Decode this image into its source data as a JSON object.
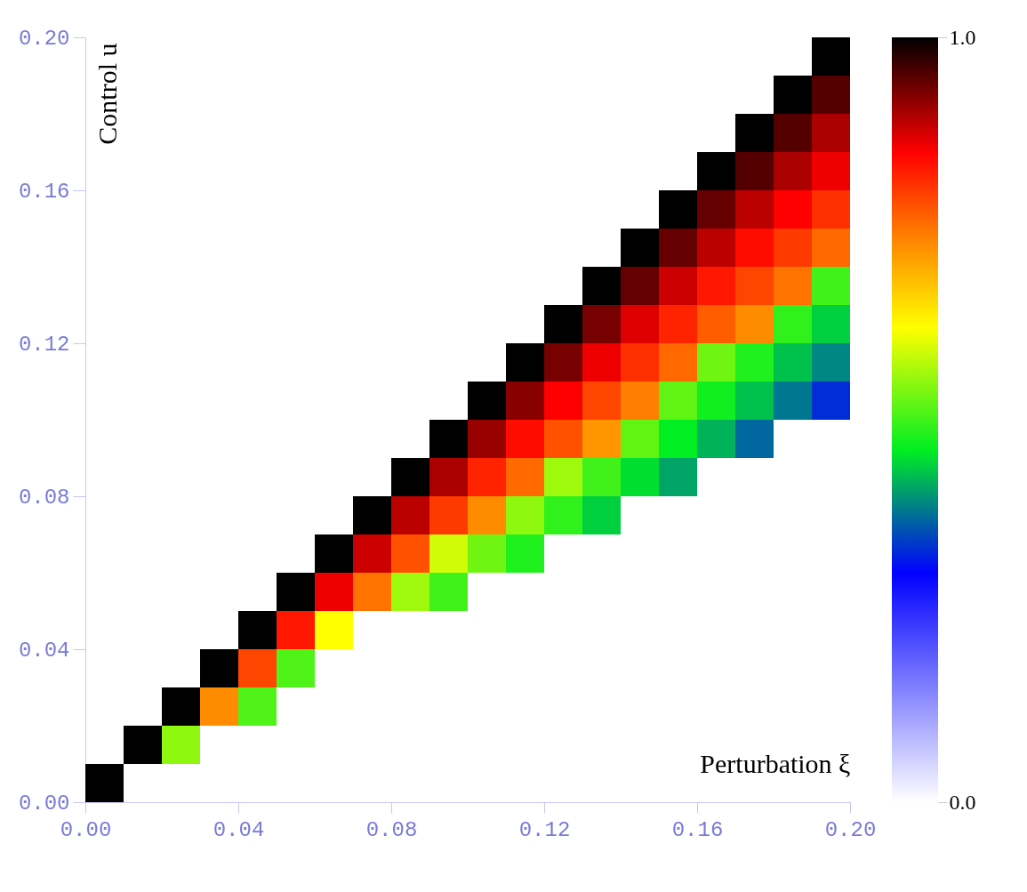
{
  "chart_data": {
    "type": "scatter",
    "xlabel": "Perturbation ξ",
    "ylabel": "Control u",
    "marker": "square",
    "xlim": [
      0,
      0.2
    ],
    "ylim": [
      0,
      0.2
    ],
    "xticks": [
      {
        "value": 0,
        "label": "0.00"
      },
      {
        "value": 0.04,
        "label": "0.04"
      },
      {
        "value": 0.08,
        "label": "0.08"
      },
      {
        "value": 0.12,
        "label": "0.12"
      },
      {
        "value": 0.16,
        "label": "0.16"
      },
      {
        "value": 0.2,
        "label": "0.20"
      }
    ],
    "yticks": [
      {
        "value": 0,
        "label": "0.00"
      },
      {
        "value": 0.04,
        "label": "0.04"
      },
      {
        "value": 0.08,
        "label": "0.08"
      },
      {
        "value": 0.12,
        "label": "0.12"
      },
      {
        "value": 0.16,
        "label": "0.16"
      },
      {
        "value": 0.2,
        "label": "0.20"
      }
    ],
    "clim": [
      0,
      1
    ],
    "cticks": [
      {
        "value": 0,
        "label": "0.0"
      },
      {
        "value": 1,
        "label": "1.0"
      }
    ],
    "grid": false,
    "x": [
      0.005,
      0.015,
      0.025,
      0.025,
      0.035,
      0.035,
      0.045,
      0.045,
      0.045,
      0.055,
      0.055,
      0.055,
      0.065,
      0.065,
      0.065,
      0.075,
      0.075,
      0.075,
      0.085,
      0.085,
      0.085,
      0.085,
      0.095,
      0.095,
      0.095,
      0.095,
      0.095,
      0.105,
      0.105,
      0.105,
      0.105,
      0.105,
      0.115,
      0.115,
      0.115,
      0.115,
      0.115,
      0.115,
      0.125,
      0.125,
      0.125,
      0.125,
      0.125,
      0.125,
      0.135,
      0.135,
      0.135,
      0.135,
      0.135,
      0.135,
      0.135,
      0.145,
      0.145,
      0.145,
      0.145,
      0.145,
      0.145,
      0.145,
      0.155,
      0.155,
      0.155,
      0.155,
      0.155,
      0.155,
      0.155,
      0.155,
      0.165,
      0.165,
      0.165,
      0.165,
      0.165,
      0.165,
      0.165,
      0.165,
      0.175,
      0.175,
      0.175,
      0.175,
      0.175,
      0.175,
      0.175,
      0.175,
      0.175,
      0.185,
      0.185,
      0.185,
      0.185,
      0.185,
      0.185,
      0.185,
      0.185,
      0.185,
      0.195,
      0.195,
      0.195,
      0.195,
      0.195,
      0.195,
      0.195,
      0.195,
      0.195,
      0.195
    ],
    "values": [
      0.005,
      0.015,
      0.015,
      0.025,
      0.025,
      0.035,
      0.025,
      0.035,
      0.045,
      0.035,
      0.045,
      0.055,
      0.045,
      0.055,
      0.065,
      0.055,
      0.065,
      0.075,
      0.055,
      0.065,
      0.075,
      0.085,
      0.055,
      0.065,
      0.075,
      0.085,
      0.095,
      0.065,
      0.075,
      0.085,
      0.095,
      0.105,
      0.065,
      0.075,
      0.085,
      0.095,
      0.105,
      0.115,
      0.075,
      0.085,
      0.095,
      0.105,
      0.115,
      0.125,
      0.075,
      0.085,
      0.095,
      0.105,
      0.115,
      0.125,
      0.135,
      0.085,
      0.095,
      0.105,
      0.115,
      0.125,
      0.135,
      0.145,
      0.085,
      0.095,
      0.105,
      0.115,
      0.125,
      0.135,
      0.145,
      0.155,
      0.095,
      0.105,
      0.115,
      0.125,
      0.135,
      0.145,
      0.155,
      0.165,
      0.095,
      0.105,
      0.115,
      0.125,
      0.135,
      0.145,
      0.155,
      0.165,
      0.175,
      0.105,
      0.115,
      0.125,
      0.135,
      0.145,
      0.155,
      0.165,
      0.175,
      0.185,
      0.105,
      0.115,
      0.125,
      0.135,
      0.145,
      0.155,
      0.165,
      0.175,
      0.185,
      0.195
    ],
    "cvalues": [
      1.0,
      1.0,
      0.55,
      1.0,
      0.73,
      1.0,
      0.51,
      0.79,
      1.0,
      0.51,
      0.83,
      1.0,
      0.62,
      0.86,
      1.0,
      0.75,
      0.88,
      1.0,
      0.56,
      0.78,
      0.89,
      1.0,
      0.5,
      0.59,
      0.8,
      0.9,
      1.0,
      0.53,
      0.73,
      0.82,
      0.91,
      1.0,
      0.48,
      0.55,
      0.76,
      0.84,
      0.92,
      1.0,
      0.49,
      0.56,
      0.78,
      0.85,
      0.93,
      1.0,
      0.44,
      0.5,
      0.72,
      0.79,
      0.86,
      0.93,
      1.0,
      0.45,
      0.52,
      0.74,
      0.81,
      0.87,
      0.94,
      1.0,
      0.41,
      0.46,
      0.52,
      0.76,
      0.82,
      0.88,
      0.94,
      1.0,
      0.42,
      0.47,
      0.53,
      0.77,
      0.83,
      0.89,
      0.94,
      1.0,
      0.37,
      0.43,
      0.48,
      0.73,
      0.79,
      0.84,
      0.89,
      0.95,
      1.0,
      0.38,
      0.43,
      0.49,
      0.75,
      0.8,
      0.85,
      0.9,
      0.95,
      1.0,
      0.33,
      0.39,
      0.44,
      0.5,
      0.76,
      0.81,
      0.86,
      0.9,
      0.95,
      1.0
    ]
  }
}
